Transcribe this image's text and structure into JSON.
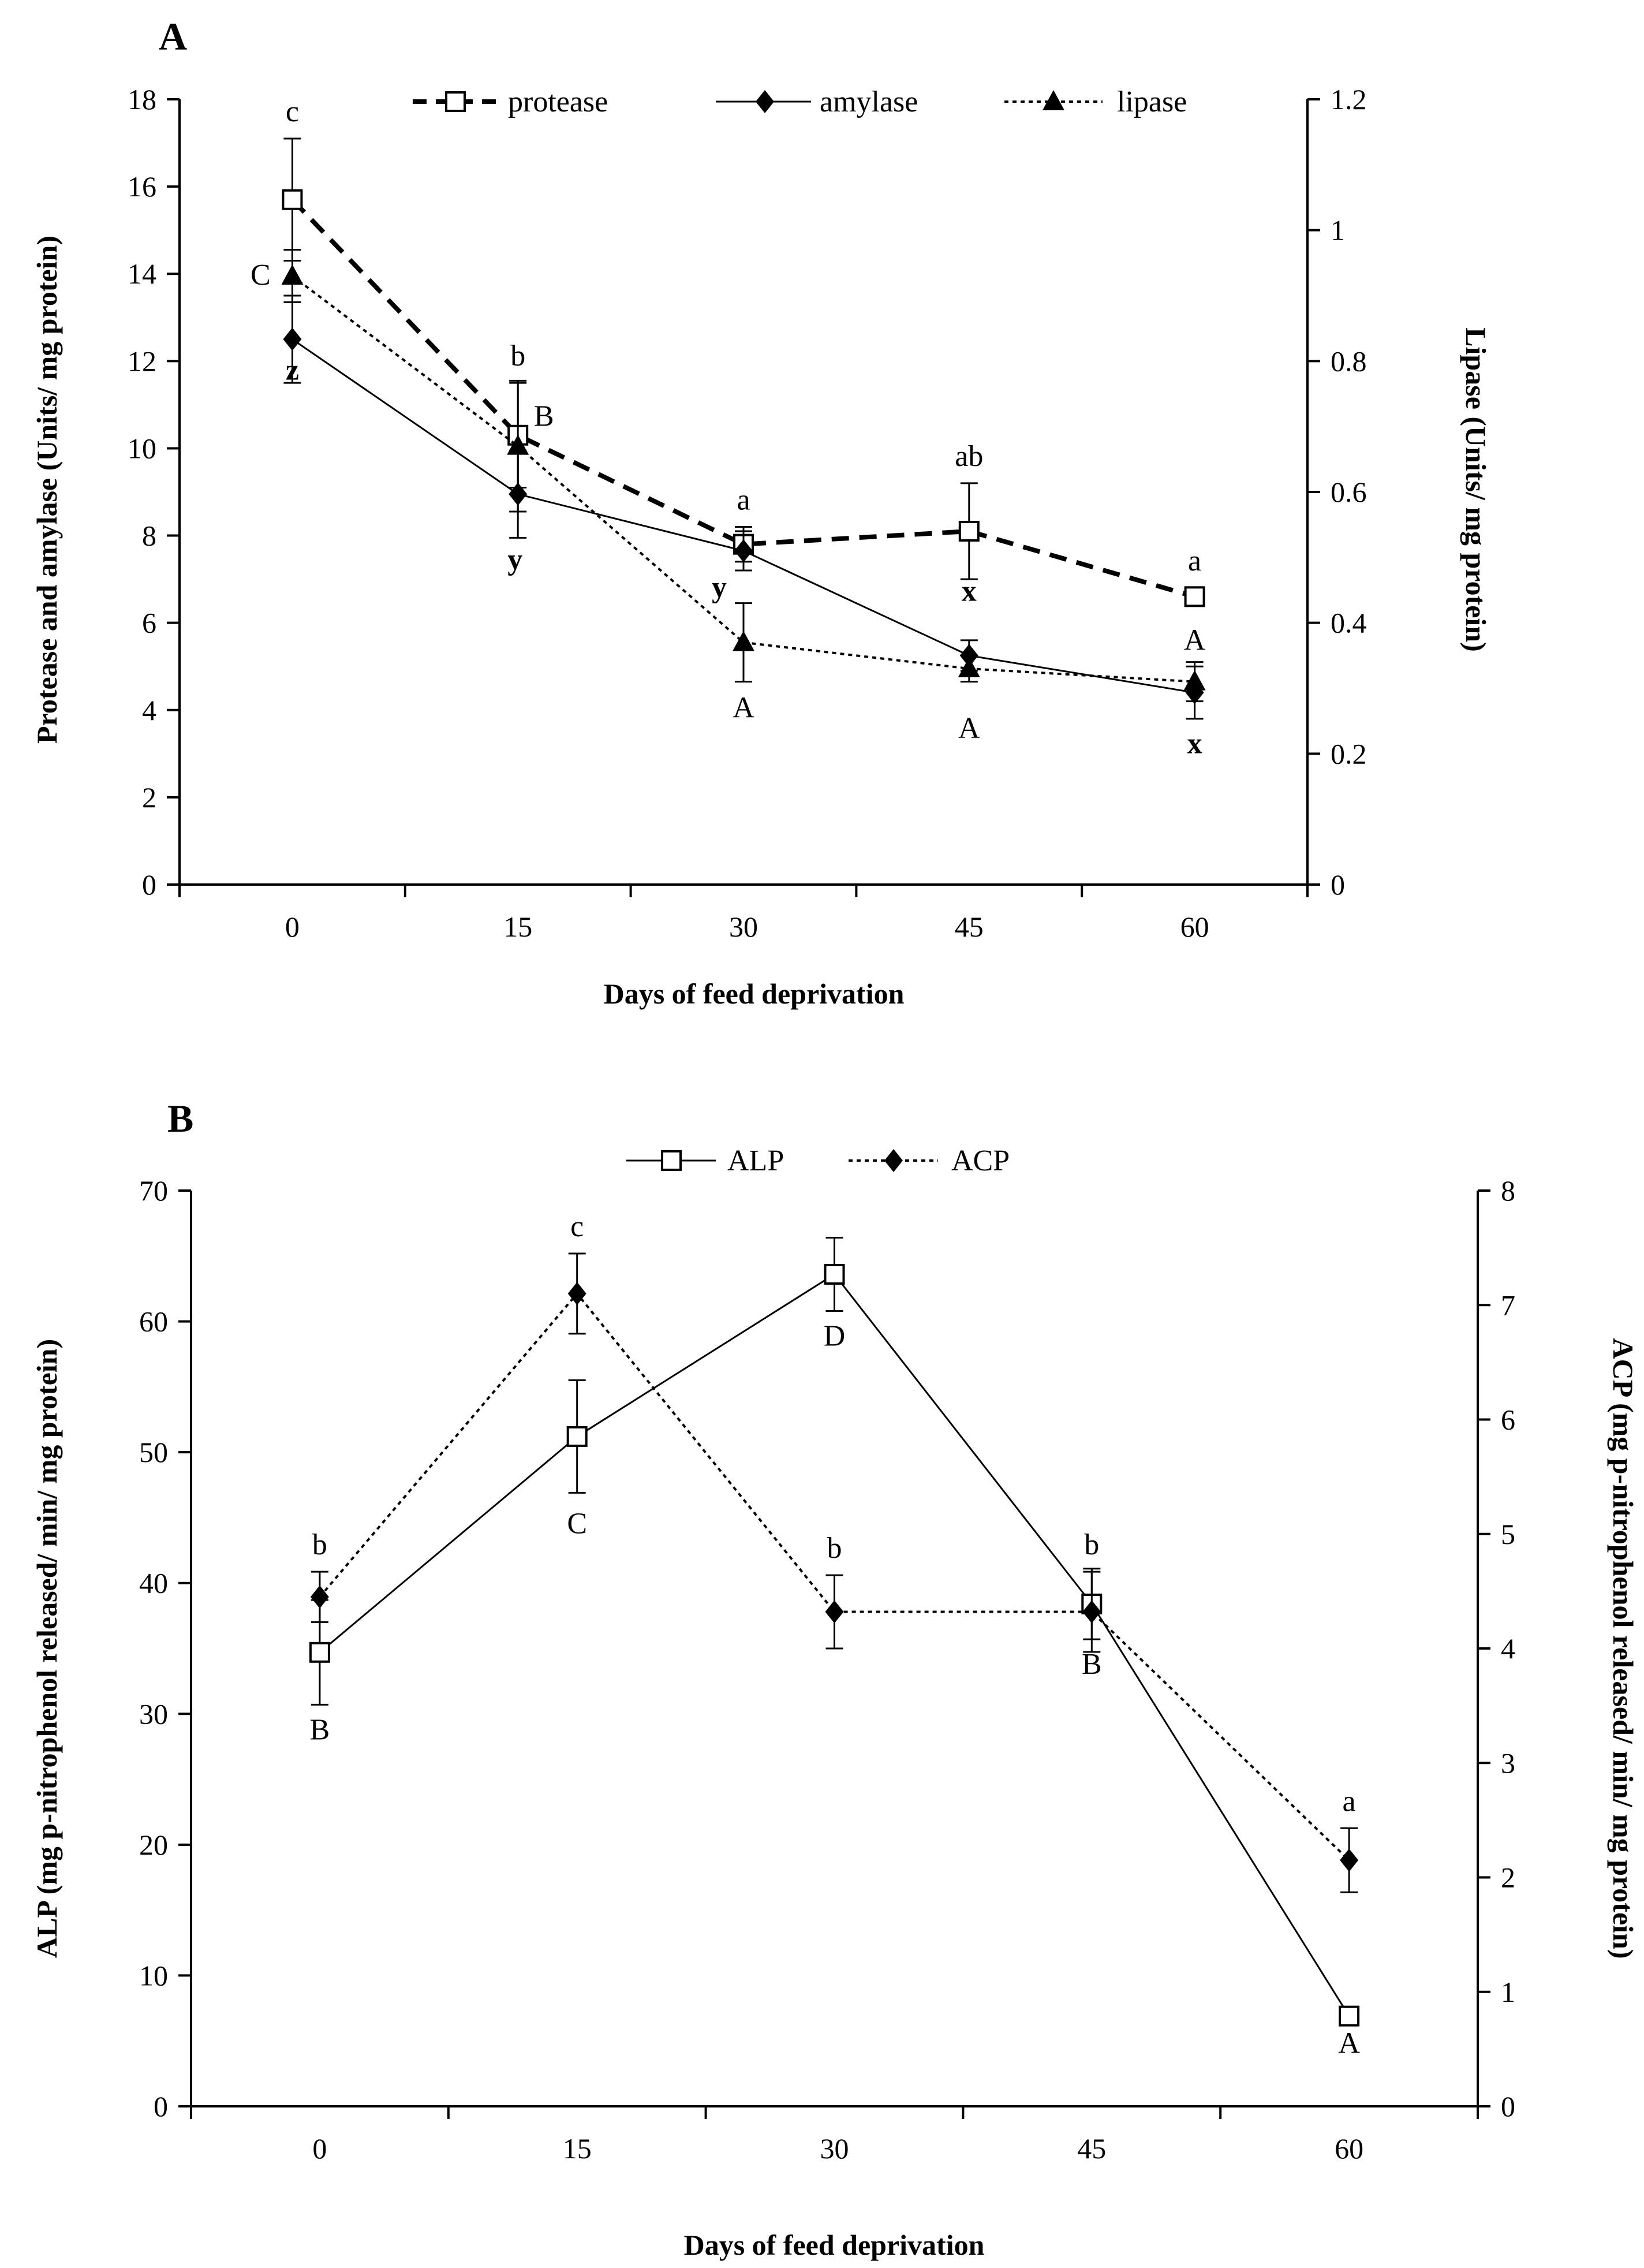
{
  "chart_data": [
    {
      "type": "line",
      "panel_label": "A",
      "xlabel": "Days of feed deprivation",
      "ylabel_left": "Protease and amylase (Units/ mg protein)",
      "ylabel_right": "Lipase (Units/ mg protein)",
      "x": [
        0,
        15,
        30,
        45,
        60
      ],
      "xlim": [
        -7.5,
        67.5
      ],
      "x_ticks": [
        "0",
        "15",
        "30",
        "45",
        "60"
      ],
      "ylim_left": [
        0,
        18
      ],
      "y_ticks_left": [
        "0",
        "2",
        "4",
        "6",
        "8",
        "10",
        "12",
        "14",
        "16",
        "18"
      ],
      "ylim_right": [
        0,
        1.2
      ],
      "y_ticks_right": [
        "0",
        "0.2",
        "0.4",
        "0.6",
        "0.8",
        "1",
        "1.2"
      ],
      "legend_position": "top",
      "series": [
        {
          "name": "protease",
          "axis": "left",
          "marker": "open-square",
          "line": "dashed",
          "values": [
            15.7,
            10.3,
            7.8,
            8.1,
            6.6
          ],
          "errors": [
            1.4,
            1.2,
            0.4,
            1.1,
            0.2
          ],
          "labels": [
            "c",
            "b",
            "a",
            "ab",
            "a"
          ]
        },
        {
          "name": "amylase",
          "axis": "left",
          "marker": "diamond",
          "line": "solid",
          "values": [
            12.5,
            8.95,
            7.65,
            5.25,
            4.4
          ],
          "errors": [
            1.0,
            1.0,
            0.45,
            0.35,
            0.6
          ],
          "labels": [
            "z",
            "y",
            "y",
            "x",
            "x"
          ]
        },
        {
          "name": "lipase",
          "axis": "right",
          "marker": "triangle",
          "line": "dotted",
          "values": [
            0.93,
            0.67,
            0.37,
            0.33,
            0.31
          ],
          "errors": [
            0.04,
            0.1,
            0.06,
            0.02,
            0.03
          ],
          "labels": [
            "C",
            "B",
            "A",
            "A",
            "A"
          ]
        }
      ]
    },
    {
      "type": "line",
      "panel_label": "B",
      "xlabel": "Days of feed deprivation",
      "ylabel_left": "ALP (mg p-nitrophenol  released/ min/  mg protein)",
      "ylabel_right": "ACP (mg p-nitrophenol  released/ min/  mg protein)",
      "x": [
        0,
        15,
        30,
        45,
        60
      ],
      "xlim": [
        -7.5,
        67.5
      ],
      "x_ticks": [
        "0",
        "15",
        "30",
        "45",
        "60"
      ],
      "ylim_left": [
        0,
        70
      ],
      "y_ticks_left": [
        "0",
        "10",
        "20",
        "30",
        "40",
        "50",
        "60",
        "70"
      ],
      "ylim_right": [
        0,
        8
      ],
      "y_ticks_right": [
        "0",
        "1",
        "2",
        "3",
        "4",
        "5",
        "6",
        "7",
        "8"
      ],
      "legend_position": "top",
      "series": [
        {
          "name": "ALP",
          "axis": "left",
          "marker": "open-square",
          "line": "solid",
          "values": [
            34.7,
            51.2,
            63.6,
            38.4,
            6.9
          ],
          "errors": [
            4.0,
            4.3,
            2.8,
            2.7,
            0.6
          ],
          "labels": [
            "B",
            "C",
            "D",
            "B",
            "A"
          ]
        },
        {
          "name": "ACP",
          "axis": "right",
          "marker": "diamond",
          "line": "dotted",
          "values": [
            4.45,
            7.1,
            4.32,
            4.32,
            2.15
          ],
          "errors": [
            0.22,
            0.35,
            0.32,
            0.35,
            0.28
          ],
          "labels": [
            "b",
            "c",
            "b",
            "b",
            "a"
          ]
        }
      ]
    }
  ]
}
